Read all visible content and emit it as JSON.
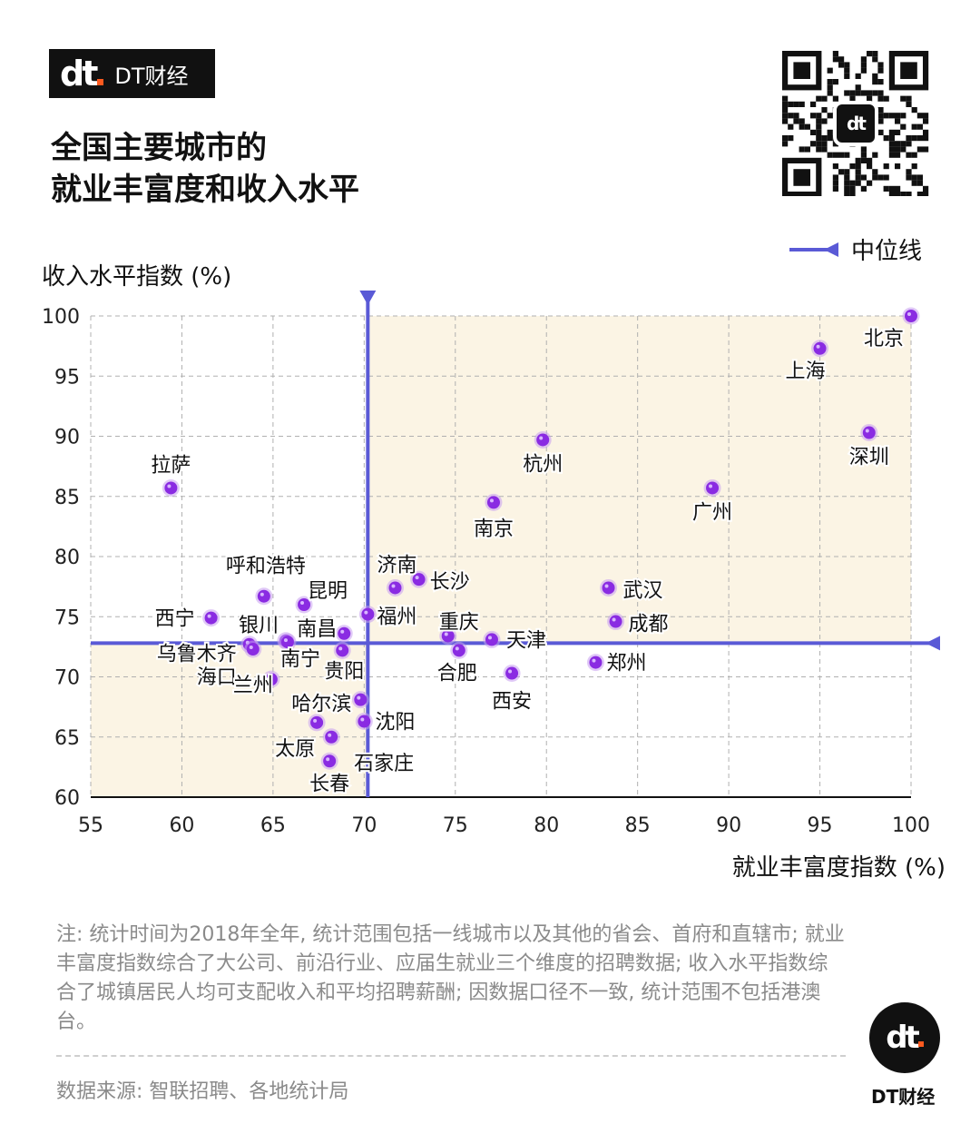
{
  "brand": {
    "name": "DT财经",
    "logo_text": "dt"
  },
  "title_lines": [
    "全国主要城市的",
    "就业丰富度和收入水平"
  ],
  "legend": {
    "label": "中位线",
    "color": "#5a5ad6"
  },
  "axes": {
    "y_title": "收入水平指数 (%)",
    "x_title": "就业丰富度指数 (%)"
  },
  "note": "注: 统计时间为2018年全年, 统计范围包括一线城市以及其他的省会、首府和直辖市; 就业丰富度指数综合了大公司、前沿行业、应届生就业三个维度的招聘数据; 收入水平指数综合了城镇居民人均可支配收入和平均招聘薪酬; 因数据口径不一致, 统计范围不包括港澳台。",
  "source": "数据来源: 智联招聘、各地统计局",
  "colors": {
    "point": "#8a2be2",
    "point_ring": "#c79cf0",
    "quadrant_fill": "#fbf4e4",
    "median_line": "#5a5ad6",
    "grid": "#b0b0b0"
  },
  "chart_data": {
    "type": "scatter",
    "xlabel": "就业丰富度指数 (%)",
    "ylabel": "收入水平指数 (%)",
    "xlim": [
      55,
      100
    ],
    "ylim": [
      60,
      100
    ],
    "x_ticks": [
      55,
      60,
      65,
      70,
      75,
      80,
      85,
      90,
      95,
      100
    ],
    "y_ticks": [
      60,
      65,
      70,
      75,
      80,
      85,
      90,
      95,
      100
    ],
    "grid": true,
    "median": {
      "x": 70.2,
      "y": 72.8
    },
    "points": [
      {
        "city": "北京",
        "x": 100.0,
        "y": 100.0
      },
      {
        "city": "上海",
        "x": 95.0,
        "y": 97.3
      },
      {
        "city": "深圳",
        "x": 97.7,
        "y": 90.3
      },
      {
        "city": "杭州",
        "x": 79.8,
        "y": 89.7
      },
      {
        "city": "广州",
        "x": 89.1,
        "y": 85.7
      },
      {
        "city": "南京",
        "x": 77.1,
        "y": 84.5
      },
      {
        "city": "拉萨",
        "x": 59.4,
        "y": 85.7
      },
      {
        "city": "济南",
        "x": 71.7,
        "y": 77.4
      },
      {
        "city": "长沙",
        "x": 73.0,
        "y": 78.1
      },
      {
        "city": "武汉",
        "x": 83.4,
        "y": 77.4
      },
      {
        "city": "成都",
        "x": 83.8,
        "y": 74.6
      },
      {
        "city": "呼和浩特",
        "x": 64.5,
        "y": 76.7
      },
      {
        "city": "昆明",
        "x": 66.7,
        "y": 76.0
      },
      {
        "city": "福州",
        "x": 70.2,
        "y": 75.2
      },
      {
        "city": "南昌",
        "x": 68.9,
        "y": 73.6
      },
      {
        "city": "重庆",
        "x": 74.6,
        "y": 73.4
      },
      {
        "city": "天津",
        "x": 77.0,
        "y": 73.1
      },
      {
        "city": "合肥",
        "x": 75.2,
        "y": 72.2
      },
      {
        "city": "郑州",
        "x": 82.7,
        "y": 71.2
      },
      {
        "city": "西安",
        "x": 78.1,
        "y": 70.3
      },
      {
        "city": "西宁",
        "x": 61.6,
        "y": 74.9
      },
      {
        "city": "银川",
        "x": 65.7,
        "y": 73.0
      },
      {
        "city": "乌鲁木齐",
        "x": 63.7,
        "y": 72.7
      },
      {
        "city": "海口",
        "x": 63.9,
        "y": 72.3
      },
      {
        "city": "南宁",
        "x": 65.8,
        "y": 72.9
      },
      {
        "city": "贵阳",
        "x": 68.8,
        "y": 72.2
      },
      {
        "city": "兰州",
        "x": 64.9,
        "y": 69.8
      },
      {
        "city": "哈尔滨",
        "x": 69.8,
        "y": 68.1
      },
      {
        "city": "沈阳",
        "x": 70.0,
        "y": 66.3
      },
      {
        "city": "太原",
        "x": 67.4,
        "y": 66.2
      },
      {
        "city": "石家庄",
        "x": 68.2,
        "y": 65.0
      },
      {
        "city": "长春",
        "x": 68.1,
        "y": 63.0
      }
    ]
  }
}
